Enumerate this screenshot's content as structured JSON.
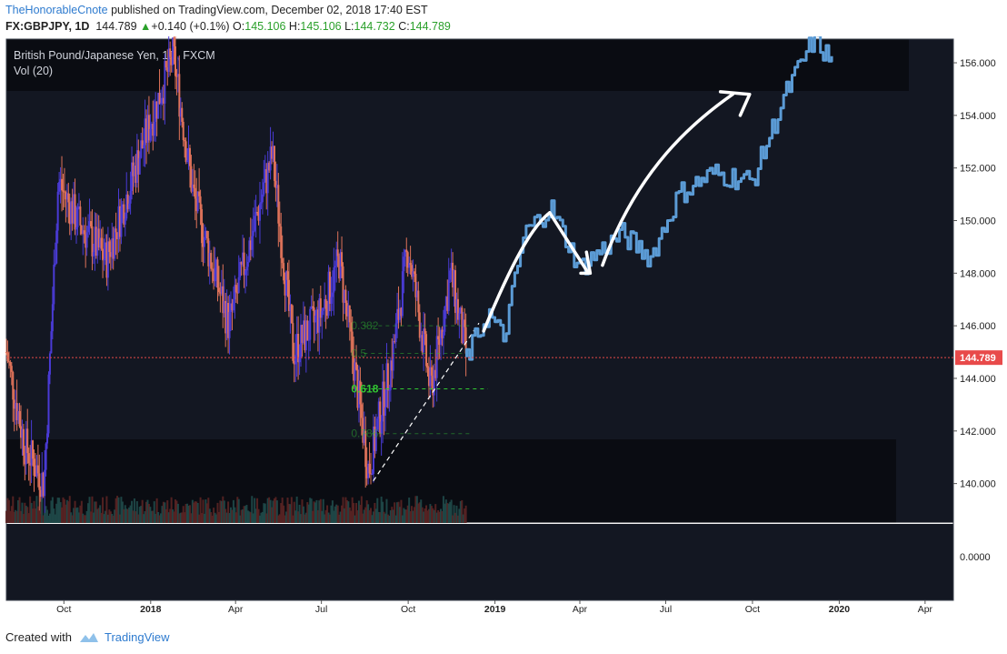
{
  "header": {
    "author": "TheHonorableCnote",
    "published": "published on TradingView.com, December 02, 2018 17:40 EST",
    "symbol": "FX:GBPJPY, 1D",
    "last": "144.789",
    "arrow": "▲",
    "change": "+0.140 (+0.1%)",
    "o_label": "O:",
    "o": "145.106",
    "h_label": "H:",
    "h": "145.106",
    "l_label": "L:",
    "l": "144.732",
    "c_label": "C:",
    "c": "144.789"
  },
  "footer": {
    "created_with": "Created with",
    "brand": "TradingView"
  },
  "colors": {
    "background": "#131722",
    "bull": "#4a3bd6",
    "bear": "#e0735a",
    "projection": "#5b9bd5",
    "fib": "#32c832",
    "last_price": "#e84a4a"
  },
  "chart_data": {
    "type": "candlestick",
    "title": "British Pound/Japanese Yen, 1D, FXCM",
    "indicator": "Vol (20)",
    "last_price_label": "144.789",
    "ylim": [
      138.5,
      156.9
    ],
    "y_ticks": [
      "156.000",
      "154.000",
      "152.000",
      "150.000",
      "148.000",
      "146.000",
      "144.000",
      "142.000",
      "140.000"
    ],
    "volume_pane_tick": "0.0000",
    "x_ticks": [
      "Oct",
      "2018",
      "Apr",
      "Jul",
      "Oct",
      "2019",
      "Apr",
      "Jul",
      "Oct",
      "2020",
      "Apr"
    ],
    "fib_levels": [
      {
        "label": "0.382",
        "value": 146.0
      },
      {
        "label": "0.5",
        "value": 144.95
      },
      {
        "label": "0.618",
        "value": 143.6
      },
      {
        "label": "0.786",
        "value": 141.9
      }
    ],
    "price_path": [
      {
        "date": "2017-08",
        "value": 145.0
      },
      {
        "date": "2017-08-20",
        "value": 141.5
      },
      {
        "date": "2017-09-10",
        "value": 140.0
      },
      {
        "date": "2017-09-25",
        "value": 151.5
      },
      {
        "date": "2017-10-15",
        "value": 150.0
      },
      {
        "date": "2017-11-15",
        "value": 148.5
      },
      {
        "date": "2017-12-20",
        "value": 152.5
      },
      {
        "date": "2018-01-25",
        "value": 156.3
      },
      {
        "date": "2018-02-15",
        "value": 151.0
      },
      {
        "date": "2018-03-25",
        "value": 146.0
      },
      {
        "date": "2018-05-10",
        "value": 152.5
      },
      {
        "date": "2018-06-01",
        "value": 145.0
      },
      {
        "date": "2018-07-01",
        "value": 146.5
      },
      {
        "date": "2018-07-20",
        "value": 148.5
      },
      {
        "date": "2018-08-20",
        "value": 140.5
      },
      {
        "date": "2018-09-15",
        "value": 145.0
      },
      {
        "date": "2018-10-01",
        "value": 149.0
      },
      {
        "date": "2018-10-25",
        "value": 143.5
      },
      {
        "date": "2018-11-15",
        "value": 148.0
      },
      {
        "date": "2018-12-02",
        "value": 144.8
      }
    ],
    "projection": [
      {
        "date": "2018-12-02",
        "value": 144.8
      },
      {
        "date": "2018-12-25",
        "value": 146.5
      },
      {
        "date": "2019-01-10",
        "value": 145.5
      },
      {
        "date": "2019-02-01",
        "value": 149.5
      },
      {
        "date": "2019-03-01",
        "value": 150.5
      },
      {
        "date": "2019-04-01",
        "value": 148.2
      },
      {
        "date": "2019-05-15",
        "value": 149.5
      },
      {
        "date": "2019-06-15",
        "value": 148.6
      },
      {
        "date": "2019-07-15",
        "value": 151.0
      },
      {
        "date": "2019-08-20",
        "value": 151.8
      },
      {
        "date": "2019-10-01",
        "value": 151.5
      },
      {
        "date": "2019-11-05",
        "value": 154.8
      },
      {
        "date": "2019-12-05",
        "value": 156.9
      },
      {
        "date": "2019-12-25",
        "value": 156.0
      }
    ]
  }
}
